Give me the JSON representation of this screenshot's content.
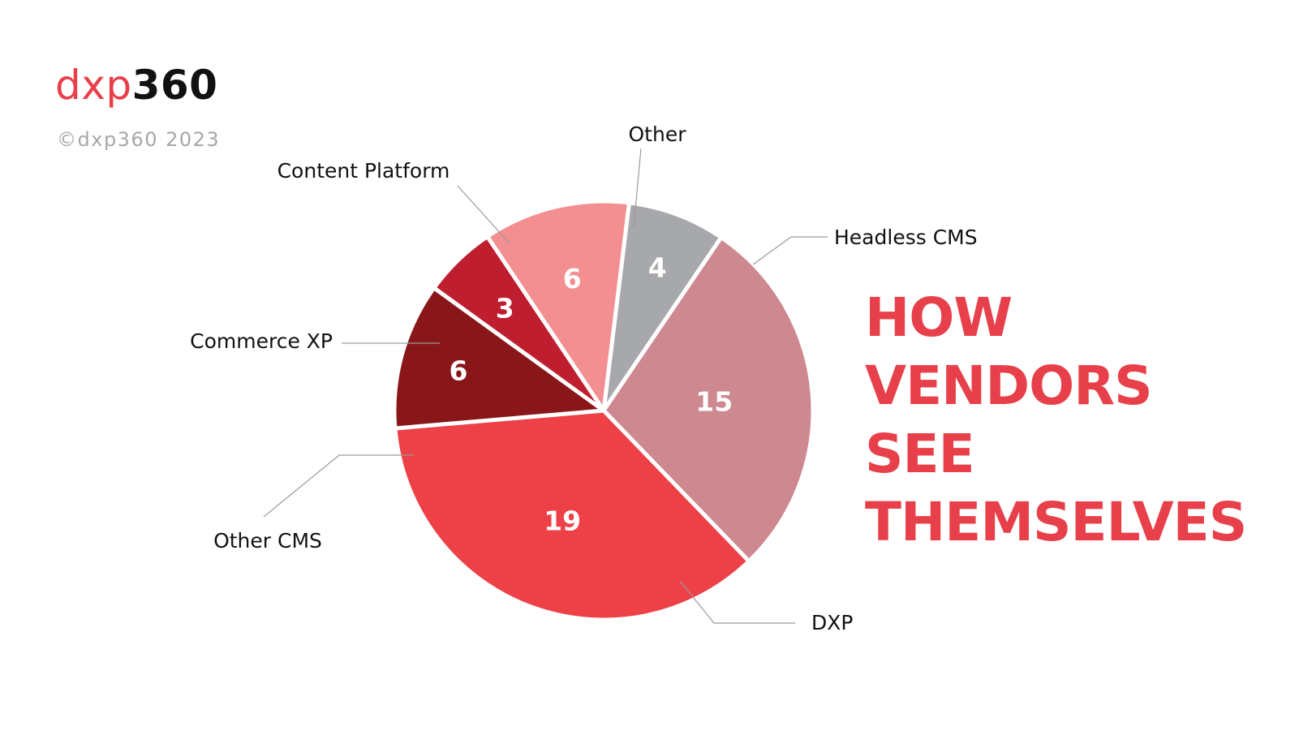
{
  "brand": {
    "prefix": "dxp",
    "suffix": "360",
    "copyright": "©dxp360 2023"
  },
  "headline": {
    "lines": [
      "HOW",
      "VENDORS",
      "SEE",
      "THEMSELVES"
    ]
  },
  "colors": {
    "accent": "#e8404a",
    "text": "#111111",
    "muted": "#a7a7a7",
    "leader": "#9a9a9a"
  },
  "chart_data": {
    "type": "pie",
    "title": "",
    "categories": [
      "Other",
      "Headless CMS",
      "DXP",
      "Other CMS",
      "Commerce XP",
      "Content Platform"
    ],
    "values": [
      4,
      15,
      19,
      6,
      3,
      6
    ],
    "colors": [
      "#a7a8ab",
      "#cd8890",
      "#ee4047",
      "#891719",
      "#bf1e2e",
      "#f38e91"
    ],
    "data_labels": [
      "4",
      "15",
      "19",
      "6",
      "3",
      "6"
    ],
    "start_angle_deg": 7,
    "direction": "clockwise",
    "legend": "none"
  }
}
